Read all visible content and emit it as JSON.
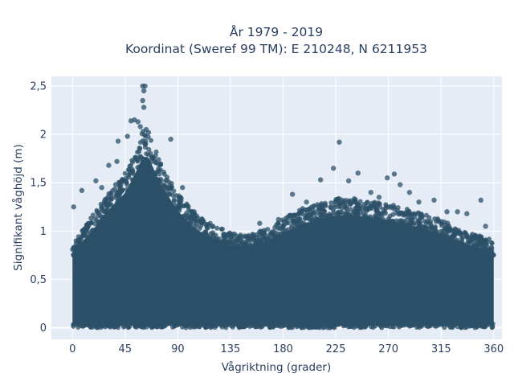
{
  "chart_data": {
    "type": "scatter",
    "title_line1": "År 1979 - 2019",
    "title_line2": "Koordinat (Sweref 99 TM): E 210248, N 6211953",
    "xlabel": "Vågriktning (grader)",
    "ylabel": "Signifikant våghöjd (m)",
    "xlim": [
      -18,
      367
    ],
    "ylim": [
      -0.12,
      2.6
    ],
    "x_ticks": [
      0,
      45,
      90,
      135,
      180,
      225,
      270,
      315,
      360
    ],
    "x_tick_labels": [
      "0",
      "45",
      "90",
      "135",
      "180",
      "225",
      "270",
      "315",
      "360"
    ],
    "y_ticks": [
      0,
      0.5,
      1,
      1.5,
      2,
      2.5
    ],
    "y_tick_labels": [
      "0",
      "0,5",
      "1",
      "1,5",
      "2",
      "2,5"
    ],
    "grid": true,
    "background_color": "#e5ecf6",
    "marker_color": "#2c5068",
    "envelope": {
      "x": [
        0,
        15,
        30,
        45,
        55,
        60,
        65,
        75,
        90,
        105,
        120,
        135,
        150,
        165,
        180,
        195,
        210,
        225,
        240,
        255,
        270,
        285,
        300,
        315,
        330,
        345,
        360
      ],
      "upper_y": [
        0.85,
        1.05,
        1.3,
        1.5,
        1.75,
        1.9,
        1.9,
        1.6,
        1.3,
        1.1,
        1.0,
        0.92,
        0.9,
        0.95,
        1.05,
        1.15,
        1.2,
        1.25,
        1.25,
        1.22,
        1.2,
        1.15,
        1.1,
        1.05,
        0.95,
        0.9,
        0.85
      ]
    },
    "outliers": [
      {
        "x": 60,
        "y": 2.5
      },
      {
        "x": 62,
        "y": 2.5
      },
      {
        "x": 61,
        "y": 2.45
      },
      {
        "x": 60,
        "y": 2.35
      },
      {
        "x": 61,
        "y": 2.28
      },
      {
        "x": 50,
        "y": 2.14
      },
      {
        "x": 53,
        "y": 2.15
      },
      {
        "x": 56,
        "y": 2.13
      },
      {
        "x": 58,
        "y": 2.08
      },
      {
        "x": 63,
        "y": 2.05
      },
      {
        "x": 65,
        "y": 2.02
      },
      {
        "x": 39,
        "y": 1.93
      },
      {
        "x": 47,
        "y": 1.98
      },
      {
        "x": 84,
        "y": 1.95
      },
      {
        "x": 228,
        "y": 1.92
      },
      {
        "x": 223,
        "y": 1.65
      },
      {
        "x": 244,
        "y": 1.6
      },
      {
        "x": 275,
        "y": 1.59
      },
      {
        "x": 269,
        "y": 1.55
      },
      {
        "x": 212,
        "y": 1.53
      },
      {
        "x": 236,
        "y": 1.52
      },
      {
        "x": 280,
        "y": 1.48
      },
      {
        "x": 25,
        "y": 1.45
      },
      {
        "x": 8,
        "y": 1.42
      },
      {
        "x": 188,
        "y": 1.38
      },
      {
        "x": 288,
        "y": 1.4
      },
      {
        "x": 20,
        "y": 1.52
      },
      {
        "x": 31,
        "y": 1.68
      },
      {
        "x": 38,
        "y": 1.72
      },
      {
        "x": 94,
        "y": 1.45
      },
      {
        "x": 349,
        "y": 1.32
      },
      {
        "x": 309,
        "y": 1.32
      },
      {
        "x": 329,
        "y": 1.2
      },
      {
        "x": 337,
        "y": 1.18
      },
      {
        "x": 1,
        "y": 1.25
      },
      {
        "x": 104,
        "y": 1.2
      },
      {
        "x": 112,
        "y": 1.1
      },
      {
        "x": 120,
        "y": 1.05
      },
      {
        "x": 160,
        "y": 1.08
      },
      {
        "x": 176,
        "y": 1.12
      },
      {
        "x": 200,
        "y": 1.3
      },
      {
        "x": 255,
        "y": 1.4
      },
      {
        "x": 262,
        "y": 1.35
      },
      {
        "x": 296,
        "y": 1.3
      },
      {
        "x": 320,
        "y": 1.2
      },
      {
        "x": 353,
        "y": 1.05
      }
    ]
  }
}
